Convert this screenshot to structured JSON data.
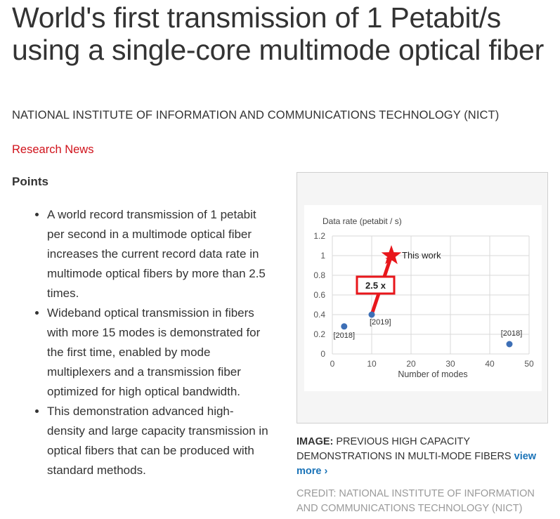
{
  "article": {
    "title": "World's first transmission of 1 Petabit/s using a single-core multimode optical fiber",
    "source": "NATIONAL INSTITUTE OF INFORMATION AND COMMUNICATIONS TECHNOLOGY (NICT)",
    "category_link": "Research News"
  },
  "points": {
    "heading": "Points",
    "items": [
      "A world record transmission of 1 petabit per second in a multimode optical fiber increases the current record data rate in multimode optical fibers by more than 2.5 times.",
      "Wideband optical transmission in fibers with more 15 modes is demonstrated for the first time, enabled by mode multiplexers and a transmission fiber optimized for high optical bandwidth.",
      "This demonstration advanced high-density and large capacity transmission in optical fibers that can be produced with standard methods."
    ]
  },
  "figure": {
    "caption_label": "IMAGE:",
    "caption_text": "PREVIOUS HIGH CAPACITY DEMONSTRATIONS IN MULTI-MODE FIBERS",
    "view_more": "view more ›",
    "credit": "CREDIT: NATIONAL INSTITUTE OF INFORMATION AND COMMUNICATIONS TECHNOLOGY (NICT)"
  },
  "chart_data": {
    "type": "scatter",
    "title": "",
    "xlabel": "Number of modes",
    "ylabel": "Data rate (petabit / s)",
    "xlim": [
      0,
      50
    ],
    "ylim": [
      0,
      1.2
    ],
    "x_ticks": [
      "0",
      "10",
      "20",
      "30",
      "40",
      "50"
    ],
    "y_ticks": [
      "0",
      "0.2",
      "0.4",
      "0.6",
      "0.8",
      "1",
      "1.2"
    ],
    "grid": true,
    "points": [
      {
        "x": 3,
        "y": 0.28,
        "label": "[2018]",
        "marker": "circle",
        "color": "#3d6fb6"
      },
      {
        "x": 10,
        "y": 0.4,
        "label": "[2019]",
        "marker": "circle",
        "color": "#3d6fb6"
      },
      {
        "x": 45,
        "y": 0.1,
        "label": "[2018]",
        "marker": "circle",
        "color": "#3d6fb6"
      },
      {
        "x": 15,
        "y": 1.0,
        "label": "This work",
        "marker": "star",
        "color": "#e8161b"
      }
    ],
    "annotation": {
      "text": "2.5 x",
      "from_x": 10,
      "from_y": 0.4,
      "to_x": 15,
      "to_y": 1.0,
      "color": "#e8161b"
    }
  }
}
